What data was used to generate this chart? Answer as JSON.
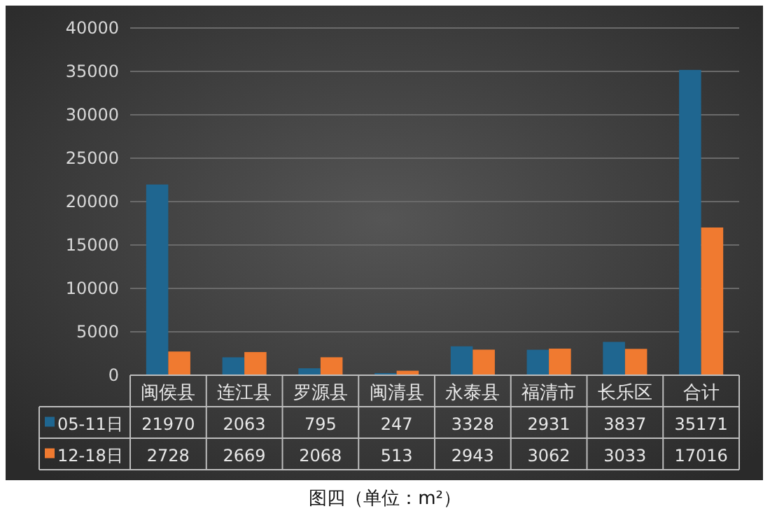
{
  "chart_data": {
    "type": "bar",
    "categories": [
      "闽侯县",
      "连江县",
      "罗源县",
      "闽清县",
      "永泰县",
      "福清市",
      "长乐区",
      "合计"
    ],
    "series": [
      {
        "name": "05-11日",
        "color": "#1f6690",
        "values": [
          21970,
          2063,
          795,
          247,
          3328,
          2931,
          3837,
          35171
        ]
      },
      {
        "name": "12-18日",
        "color": "#f07a30",
        "values": [
          2728,
          2669,
          2068,
          513,
          2943,
          3062,
          3033,
          17016
        ]
      }
    ],
    "ylim": [
      0,
      40000
    ],
    "yticks": [
      0,
      5000,
      10000,
      15000,
      20000,
      25000,
      30000,
      35000,
      40000
    ],
    "grid": "y",
    "legend": "bottom",
    "data_labels": true,
    "annotations": [
      "图四（单位：m²）"
    ]
  }
}
